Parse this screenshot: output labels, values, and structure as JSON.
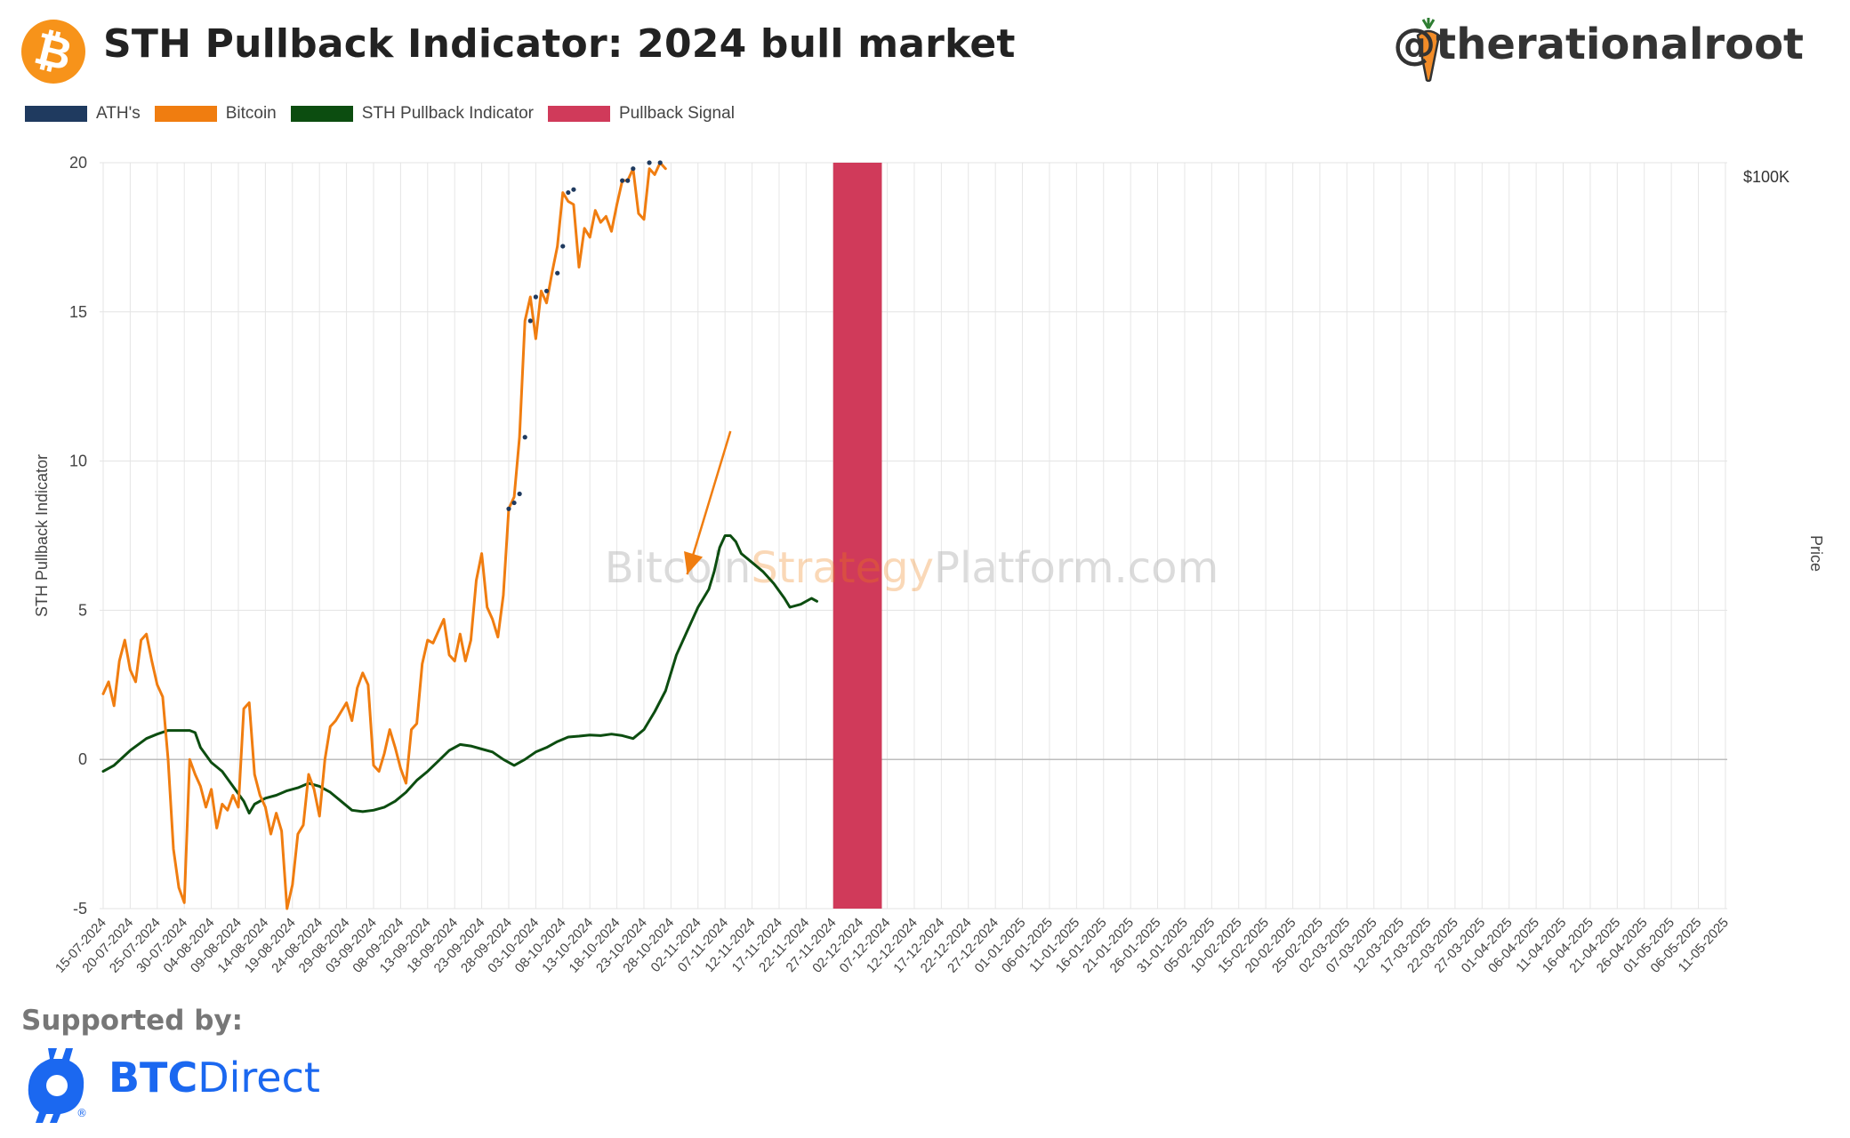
{
  "header": {
    "title": "STH Pullback Indicator: 2024 bull market",
    "handle": "@therationalroot",
    "logo_symbol": "₿"
  },
  "legend": [
    {
      "label": "ATH's",
      "color": "#1f3a5f"
    },
    {
      "label": "Bitcoin",
      "color": "#f07d10"
    },
    {
      "label": "STH Pullback Indicator",
      "color": "#0c4d10"
    },
    {
      "label": "Pullback Signal",
      "color": "#d03a5a"
    }
  ],
  "watermark": {
    "part1": "Bitcoin",
    "part2": "Strategy",
    "part3": "Platform.com"
  },
  "footer": {
    "supported_by": "Supported by:",
    "sponsor_bold": "BTC",
    "sponsor_rest": "Direct",
    "sponsor_registered": "®"
  },
  "chart_data": {
    "type": "line",
    "ylabel": "STH Pullback Indicator",
    "y2label": "Price",
    "ylim": [
      -5,
      20
    ],
    "yticks": [
      "20",
      "15",
      "10",
      "5",
      "0",
      "-5"
    ],
    "y2tick_labels": [
      "$100K"
    ],
    "grid": true,
    "legend_position": "top-left",
    "x_dates": [
      "15-07-2024",
      "20-07-2024",
      "25-07-2024",
      "30-07-2024",
      "04-08-2024",
      "09-08-2024",
      "14-08-2024",
      "19-08-2024",
      "24-08-2024",
      "29-08-2024",
      "03-09-2024",
      "08-09-2024",
      "13-09-2024",
      "18-09-2024",
      "23-09-2024",
      "28-09-2024",
      "03-10-2024",
      "08-10-2024",
      "13-10-2024",
      "18-10-2024",
      "23-10-2024",
      "28-10-2024",
      "02-11-2024",
      "07-11-2024",
      "12-11-2024",
      "17-11-2024",
      "22-11-2024",
      "27-11-2024",
      "02-12-2024",
      "07-12-2024",
      "12-12-2024",
      "17-12-2024",
      "22-12-2024",
      "27-12-2024",
      "01-01-2025",
      "06-01-2025",
      "11-01-2025",
      "16-01-2025",
      "21-01-2025",
      "26-01-2025",
      "31-01-2025",
      "05-02-2025",
      "10-02-2025",
      "15-02-2025",
      "20-02-2025",
      "25-02-2025",
      "02-03-2025",
      "07-03-2025",
      "12-03-2025",
      "17-03-2025",
      "22-03-2025",
      "27-03-2025",
      "01-04-2025",
      "06-04-2025",
      "11-04-2025",
      "16-04-2025",
      "21-04-2025",
      "26-04-2025",
      "01-05-2025",
      "06-05-2025",
      "11-05-2025"
    ],
    "pullback_signal": {
      "from": "27-11-2024",
      "to": "06-12-2024"
    },
    "series": [
      {
        "name": "STH Pullback Indicator",
        "color": "#0c4d10",
        "points": [
          [
            0,
            -0.4
          ],
          [
            2,
            -0.2
          ],
          [
            5,
            0.3
          ],
          [
            8,
            0.7
          ],
          [
            10,
            0.85
          ],
          [
            12,
            0.97
          ],
          [
            14,
            0.97
          ],
          [
            16,
            0.97
          ],
          [
            17,
            0.9
          ],
          [
            18,
            0.4
          ],
          [
            20,
            -0.1
          ],
          [
            22,
            -0.4
          ],
          [
            24,
            -0.9
          ],
          [
            26,
            -1.4
          ],
          [
            27,
            -1.8
          ],
          [
            28,
            -1.5
          ],
          [
            30,
            -1.3
          ],
          [
            32,
            -1.2
          ],
          [
            34,
            -1.05
          ],
          [
            36,
            -0.95
          ],
          [
            38,
            -0.8
          ],
          [
            40,
            -0.9
          ],
          [
            42,
            -1.1
          ],
          [
            44,
            -1.4
          ],
          [
            46,
            -1.7
          ],
          [
            48,
            -1.75
          ],
          [
            50,
            -1.7
          ],
          [
            52,
            -1.6
          ],
          [
            54,
            -1.4
          ],
          [
            56,
            -1.1
          ],
          [
            58,
            -0.7
          ],
          [
            60,
            -0.4
          ],
          [
            62,
            -0.05
          ],
          [
            64,
            0.3
          ],
          [
            66,
            0.5
          ],
          [
            68,
            0.45
          ],
          [
            70,
            0.35
          ],
          [
            72,
            0.25
          ],
          [
            74,
            0.0
          ],
          [
            76,
            -0.2
          ],
          [
            78,
            0.0
          ],
          [
            80,
            0.25
          ],
          [
            82,
            0.4
          ],
          [
            84,
            0.6
          ],
          [
            86,
            0.75
          ],
          [
            88,
            0.78
          ],
          [
            90,
            0.82
          ],
          [
            92,
            0.8
          ],
          [
            94,
            0.85
          ],
          [
            96,
            0.8
          ],
          [
            98,
            0.7
          ],
          [
            100,
            1.0
          ],
          [
            102,
            1.6
          ],
          [
            104,
            2.3
          ],
          [
            106,
            3.5
          ],
          [
            108,
            4.3
          ],
          [
            110,
            5.1
          ],
          [
            112,
            5.7
          ],
          [
            113,
            6.3
          ],
          [
            114,
            7.1
          ],
          [
            115,
            7.5
          ],
          [
            116,
            7.5
          ],
          [
            117,
            7.3
          ],
          [
            118,
            6.9
          ],
          [
            120,
            6.6
          ],
          [
            122,
            6.3
          ],
          [
            124,
            5.9
          ],
          [
            126,
            5.4
          ],
          [
            127,
            5.1
          ],
          [
            129,
            5.2
          ],
          [
            131,
            5.4
          ],
          [
            132,
            5.3
          ]
        ]
      },
      {
        "name": "Bitcoin",
        "color": "#f07d10",
        "points": [
          [
            0,
            2.2
          ],
          [
            1,
            2.6
          ],
          [
            2,
            1.8
          ],
          [
            3,
            3.3
          ],
          [
            4,
            4.0
          ],
          [
            5,
            3.0
          ],
          [
            6,
            2.6
          ],
          [
            7,
            4.0
          ],
          [
            8,
            4.2
          ],
          [
            9,
            3.3
          ],
          [
            10,
            2.5
          ],
          [
            11,
            2.1
          ],
          [
            12,
            0.0
          ],
          [
            13,
            -3.0
          ],
          [
            14,
            -4.3
          ],
          [
            15,
            -4.8
          ],
          [
            16,
            0.0
          ],
          [
            17,
            -0.5
          ],
          [
            18,
            -0.9
          ],
          [
            19,
            -1.6
          ],
          [
            20,
            -1.0
          ],
          [
            21,
            -2.3
          ],
          [
            22,
            -1.5
          ],
          [
            23,
            -1.7
          ],
          [
            24,
            -1.2
          ],
          [
            25,
            -1.6
          ],
          [
            26,
            1.7
          ],
          [
            27,
            1.9
          ],
          [
            28,
            -0.5
          ],
          [
            29,
            -1.2
          ],
          [
            30,
            -1.6
          ],
          [
            31,
            -2.5
          ],
          [
            32,
            -1.8
          ],
          [
            33,
            -2.4
          ],
          [
            34,
            -5.0
          ],
          [
            35,
            -4.2
          ],
          [
            36,
            -2.5
          ],
          [
            37,
            -2.2
          ],
          [
            38,
            -0.5
          ],
          [
            39,
            -1.0
          ],
          [
            40,
            -1.9
          ],
          [
            41,
            0.0
          ],
          [
            42,
            1.1
          ],
          [
            43,
            1.3
          ],
          [
            44,
            1.6
          ],
          [
            45,
            1.9
          ],
          [
            46,
            1.3
          ],
          [
            47,
            2.4
          ],
          [
            48,
            2.9
          ],
          [
            49,
            2.5
          ],
          [
            50,
            -0.2
          ],
          [
            51,
            -0.4
          ],
          [
            52,
            0.2
          ],
          [
            53,
            1.0
          ],
          [
            54,
            0.4
          ],
          [
            55,
            -0.3
          ],
          [
            56,
            -0.8
          ],
          [
            57,
            1.0
          ],
          [
            58,
            1.2
          ],
          [
            59,
            3.2
          ],
          [
            60,
            4.0
          ],
          [
            61,
            3.9
          ],
          [
            62,
            4.3
          ],
          [
            63,
            4.7
          ],
          [
            64,
            3.5
          ],
          [
            65,
            3.3
          ],
          [
            66,
            4.2
          ],
          [
            67,
            3.3
          ],
          [
            68,
            4.0
          ],
          [
            69,
            6.0
          ],
          [
            70,
            6.9
          ],
          [
            71,
            5.1
          ],
          [
            72,
            4.7
          ],
          [
            73,
            4.1
          ],
          [
            74,
            5.5
          ],
          [
            75,
            8.4
          ],
          [
            76,
            8.8
          ],
          [
            77,
            10.8
          ],
          [
            78,
            14.7
          ],
          [
            79,
            15.5
          ],
          [
            80,
            14.1
          ],
          [
            81,
            15.7
          ],
          [
            82,
            15.3
          ],
          [
            83,
            16.3
          ],
          [
            84,
            17.2
          ],
          [
            85,
            19.0
          ],
          [
            86,
            18.7
          ],
          [
            87,
            18.6
          ],
          [
            88,
            16.5
          ],
          [
            89,
            17.8
          ],
          [
            90,
            17.5
          ],
          [
            91,
            18.4
          ],
          [
            92,
            18.0
          ],
          [
            93,
            18.2
          ],
          [
            94,
            17.7
          ],
          [
            95,
            18.6
          ],
          [
            96,
            19.4
          ],
          [
            97,
            19.4
          ],
          [
            98,
            19.8
          ],
          [
            99,
            18.3
          ],
          [
            100,
            18.1
          ],
          [
            101,
            19.8
          ],
          [
            102,
            19.6
          ],
          [
            103,
            20.0
          ],
          [
            104,
            19.8
          ]
        ]
      }
    ],
    "ath_markers": [
      [
        75,
        8.4
      ],
      [
        76,
        8.6
      ],
      [
        77,
        8.9
      ],
      [
        78,
        10.8
      ],
      [
        79,
        14.7
      ],
      [
        80,
        15.5
      ],
      [
        82,
        15.7
      ],
      [
        84,
        16.3
      ],
      [
        85,
        17.2
      ],
      [
        86,
        19.0
      ],
      [
        87,
        19.1
      ],
      [
        96,
        19.4
      ],
      [
        97,
        19.4
      ],
      [
        98,
        19.8
      ],
      [
        101,
        20.0
      ],
      [
        103,
        20.0
      ]
    ],
    "annotation_arrow": {
      "from": [
        116,
        11.0
      ],
      "to": [
        108,
        6.2
      ],
      "color": "#f07d10"
    }
  }
}
